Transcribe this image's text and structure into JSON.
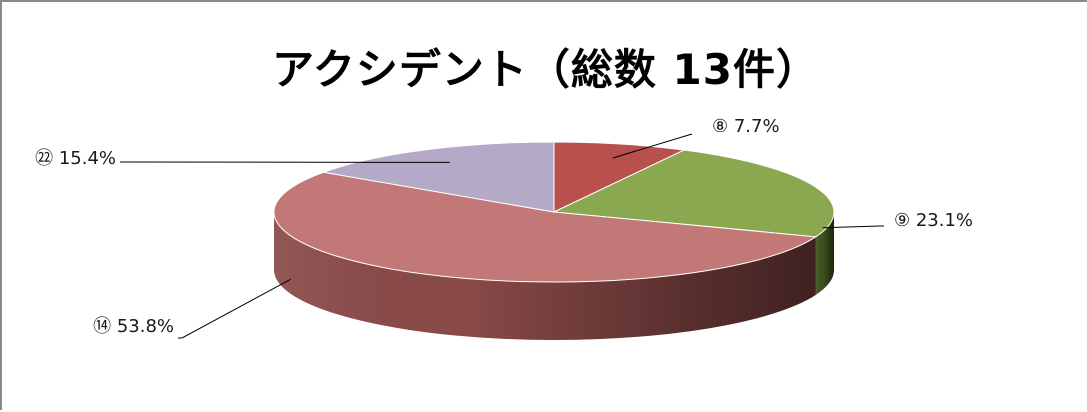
{
  "chart_data": {
    "type": "pie",
    "title": "アクシデント（総数 13件）",
    "total": 13,
    "slices": [
      {
        "label": "⑧",
        "value": 1,
        "percent_label": "7.7%",
        "color": "#b8504d",
        "side": "#7a2e2c"
      },
      {
        "label": "⑨",
        "value": 3,
        "percent_label": "23.1%",
        "color": "#8aa84f",
        "side": "#3f5520"
      },
      {
        "label": "⑭",
        "value": 7,
        "percent_label": "53.8%",
        "color": "#c17876",
        "side": "#8a4a48"
      },
      {
        "label": "㉒",
        "value": 2,
        "percent_label": "15.4%",
        "color": "#b4a9c6",
        "side": "#7e7592"
      }
    ],
    "legend": "none"
  }
}
